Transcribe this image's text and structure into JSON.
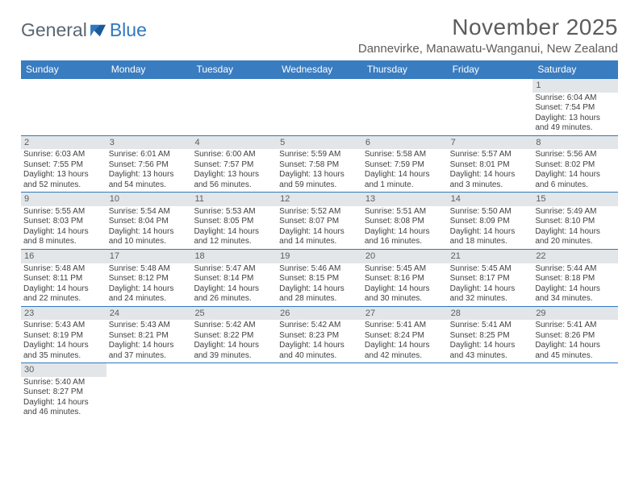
{
  "logo": {
    "text1": "General",
    "text2": "Blue"
  },
  "title": "November 2025",
  "location": "Dannevirke, Manawatu-Wanganui, New Zealand",
  "colors": {
    "headerBlue": "#3a7cc0",
    "gridLine": "#2f78bf",
    "dayBg": "#e3e6e8",
    "textGray": "#5c5c5d",
    "bodyText": "#404142"
  },
  "weekdays": [
    "Sunday",
    "Monday",
    "Tuesday",
    "Wednesday",
    "Thursday",
    "Friday",
    "Saturday"
  ],
  "weeks": [
    [
      {
        "n": "",
        "empty": true
      },
      {
        "n": "",
        "empty": true
      },
      {
        "n": "",
        "empty": true
      },
      {
        "n": "",
        "empty": true
      },
      {
        "n": "",
        "empty": true
      },
      {
        "n": "",
        "empty": true
      },
      {
        "n": "1",
        "sr": "Sunrise: 6:04 AM",
        "ss": "Sunset: 7:54 PM",
        "dl": "Daylight: 13 hours and 49 minutes."
      }
    ],
    [
      {
        "n": "2",
        "sr": "Sunrise: 6:03 AM",
        "ss": "Sunset: 7:55 PM",
        "dl": "Daylight: 13 hours and 52 minutes."
      },
      {
        "n": "3",
        "sr": "Sunrise: 6:01 AM",
        "ss": "Sunset: 7:56 PM",
        "dl": "Daylight: 13 hours and 54 minutes."
      },
      {
        "n": "4",
        "sr": "Sunrise: 6:00 AM",
        "ss": "Sunset: 7:57 PM",
        "dl": "Daylight: 13 hours and 56 minutes."
      },
      {
        "n": "5",
        "sr": "Sunrise: 5:59 AM",
        "ss": "Sunset: 7:58 PM",
        "dl": "Daylight: 13 hours and 59 minutes."
      },
      {
        "n": "6",
        "sr": "Sunrise: 5:58 AM",
        "ss": "Sunset: 7:59 PM",
        "dl": "Daylight: 14 hours and 1 minute."
      },
      {
        "n": "7",
        "sr": "Sunrise: 5:57 AM",
        "ss": "Sunset: 8:01 PM",
        "dl": "Daylight: 14 hours and 3 minutes."
      },
      {
        "n": "8",
        "sr": "Sunrise: 5:56 AM",
        "ss": "Sunset: 8:02 PM",
        "dl": "Daylight: 14 hours and 6 minutes."
      }
    ],
    [
      {
        "n": "9",
        "sr": "Sunrise: 5:55 AM",
        "ss": "Sunset: 8:03 PM",
        "dl": "Daylight: 14 hours and 8 minutes."
      },
      {
        "n": "10",
        "sr": "Sunrise: 5:54 AM",
        "ss": "Sunset: 8:04 PM",
        "dl": "Daylight: 14 hours and 10 minutes."
      },
      {
        "n": "11",
        "sr": "Sunrise: 5:53 AM",
        "ss": "Sunset: 8:05 PM",
        "dl": "Daylight: 14 hours and 12 minutes."
      },
      {
        "n": "12",
        "sr": "Sunrise: 5:52 AM",
        "ss": "Sunset: 8:07 PM",
        "dl": "Daylight: 14 hours and 14 minutes."
      },
      {
        "n": "13",
        "sr": "Sunrise: 5:51 AM",
        "ss": "Sunset: 8:08 PM",
        "dl": "Daylight: 14 hours and 16 minutes."
      },
      {
        "n": "14",
        "sr": "Sunrise: 5:50 AM",
        "ss": "Sunset: 8:09 PM",
        "dl": "Daylight: 14 hours and 18 minutes."
      },
      {
        "n": "15",
        "sr": "Sunrise: 5:49 AM",
        "ss": "Sunset: 8:10 PM",
        "dl": "Daylight: 14 hours and 20 minutes."
      }
    ],
    [
      {
        "n": "16",
        "sr": "Sunrise: 5:48 AM",
        "ss": "Sunset: 8:11 PM",
        "dl": "Daylight: 14 hours and 22 minutes."
      },
      {
        "n": "17",
        "sr": "Sunrise: 5:48 AM",
        "ss": "Sunset: 8:12 PM",
        "dl": "Daylight: 14 hours and 24 minutes."
      },
      {
        "n": "18",
        "sr": "Sunrise: 5:47 AM",
        "ss": "Sunset: 8:14 PM",
        "dl": "Daylight: 14 hours and 26 minutes."
      },
      {
        "n": "19",
        "sr": "Sunrise: 5:46 AM",
        "ss": "Sunset: 8:15 PM",
        "dl": "Daylight: 14 hours and 28 minutes."
      },
      {
        "n": "20",
        "sr": "Sunrise: 5:45 AM",
        "ss": "Sunset: 8:16 PM",
        "dl": "Daylight: 14 hours and 30 minutes."
      },
      {
        "n": "21",
        "sr": "Sunrise: 5:45 AM",
        "ss": "Sunset: 8:17 PM",
        "dl": "Daylight: 14 hours and 32 minutes."
      },
      {
        "n": "22",
        "sr": "Sunrise: 5:44 AM",
        "ss": "Sunset: 8:18 PM",
        "dl": "Daylight: 14 hours and 34 minutes."
      }
    ],
    [
      {
        "n": "23",
        "sr": "Sunrise: 5:43 AM",
        "ss": "Sunset: 8:19 PM",
        "dl": "Daylight: 14 hours and 35 minutes."
      },
      {
        "n": "24",
        "sr": "Sunrise: 5:43 AM",
        "ss": "Sunset: 8:21 PM",
        "dl": "Daylight: 14 hours and 37 minutes."
      },
      {
        "n": "25",
        "sr": "Sunrise: 5:42 AM",
        "ss": "Sunset: 8:22 PM",
        "dl": "Daylight: 14 hours and 39 minutes."
      },
      {
        "n": "26",
        "sr": "Sunrise: 5:42 AM",
        "ss": "Sunset: 8:23 PM",
        "dl": "Daylight: 14 hours and 40 minutes."
      },
      {
        "n": "27",
        "sr": "Sunrise: 5:41 AM",
        "ss": "Sunset: 8:24 PM",
        "dl": "Daylight: 14 hours and 42 minutes."
      },
      {
        "n": "28",
        "sr": "Sunrise: 5:41 AM",
        "ss": "Sunset: 8:25 PM",
        "dl": "Daylight: 14 hours and 43 minutes."
      },
      {
        "n": "29",
        "sr": "Sunrise: 5:41 AM",
        "ss": "Sunset: 8:26 PM",
        "dl": "Daylight: 14 hours and 45 minutes."
      }
    ],
    [
      {
        "n": "30",
        "sr": "Sunrise: 5:40 AM",
        "ss": "Sunset: 8:27 PM",
        "dl": "Daylight: 14 hours and 46 minutes."
      },
      {
        "n": "",
        "empty": true
      },
      {
        "n": "",
        "empty": true
      },
      {
        "n": "",
        "empty": true
      },
      {
        "n": "",
        "empty": true
      },
      {
        "n": "",
        "empty": true
      },
      {
        "n": "",
        "empty": true
      }
    ]
  ]
}
